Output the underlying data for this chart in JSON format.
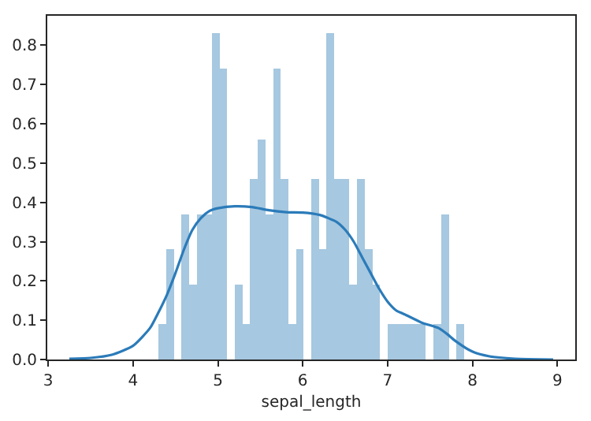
{
  "chart_data": {
    "type": "histogram",
    "xlabel": "sepal_length",
    "bins": [
      4.3,
      4.39,
      4.48,
      4.57,
      4.66,
      4.75,
      4.84,
      4.93,
      5.02,
      5.11,
      5.2,
      5.29,
      5.38,
      5.47,
      5.56,
      5.65,
      5.74,
      5.83,
      5.92,
      6.01,
      6.1,
      6.19,
      6.28,
      6.37,
      6.46,
      6.55,
      6.64,
      6.73,
      6.82,
      6.91,
      7.0,
      7.09,
      7.18,
      7.27,
      7.36,
      7.45,
      7.54,
      7.63,
      7.72,
      7.81,
      7.9
    ],
    "series": [
      {
        "color": "#a6c8e0",
        "values": [
          0.09,
          0.28,
          0,
          0.37,
          0.19,
          0.37,
          0.37,
          0.83,
          0.74,
          0,
          0.19,
          0.09,
          0.46,
          0.56,
          0.37,
          0.74,
          0.46,
          0.09,
          0.28,
          0,
          0.46,
          0.28,
          0.83,
          0.46,
          0.46,
          0.19,
          0.46,
          0.28,
          0.19,
          0,
          0.09,
          0.09,
          0.09,
          0.09,
          0.09,
          0,
          0.09,
          0.37,
          0,
          0.09
        ]
      },
      {
        "type": "line",
        "color": "#2b7bb9",
        "x": [
          3.25,
          3.5,
          3.75,
          4.0,
          4.2,
          4.3,
          4.4,
          4.5,
          4.6,
          4.7,
          4.8,
          4.9,
          5.0,
          5.2,
          5.4,
          5.6,
          5.8,
          6.0,
          6.2,
          6.3,
          6.4,
          6.5,
          6.6,
          6.7,
          6.8,
          6.9,
          7.0,
          7.1,
          7.2,
          7.4,
          7.6,
          7.7,
          7.8,
          8.0,
          8.2,
          8.5,
          8.95
        ],
        "values": [
          0.002,
          0.004,
          0.012,
          0.035,
          0.08,
          0.12,
          0.165,
          0.22,
          0.28,
          0.33,
          0.36,
          0.378,
          0.385,
          0.39,
          0.388,
          0.38,
          0.375,
          0.374,
          0.368,
          0.36,
          0.35,
          0.33,
          0.3,
          0.26,
          0.22,
          0.18,
          0.147,
          0.125,
          0.115,
          0.094,
          0.08,
          0.065,
          0.047,
          0.02,
          0.008,
          0.002,
          0
        ]
      }
    ],
    "xlim": [
      2.99,
      9.21
    ],
    "ylim": [
      0,
      0.875
    ],
    "xticks": [
      3,
      4,
      5,
      6,
      7,
      8,
      9
    ],
    "yticks": [
      {
        "value": 0,
        "label": "0.0"
      },
      {
        "value": 0.1,
        "label": "0.1"
      },
      {
        "value": 0.2,
        "label": "0.2"
      },
      {
        "value": 0.3,
        "label": "0.3"
      },
      {
        "value": 0.4,
        "label": "0.4"
      },
      {
        "value": 0.5,
        "label": "0.5"
      },
      {
        "value": 0.6,
        "label": "0.6"
      },
      {
        "value": 0.7,
        "label": "0.7"
      },
      {
        "value": 0.8,
        "label": "0.8"
      }
    ]
  }
}
